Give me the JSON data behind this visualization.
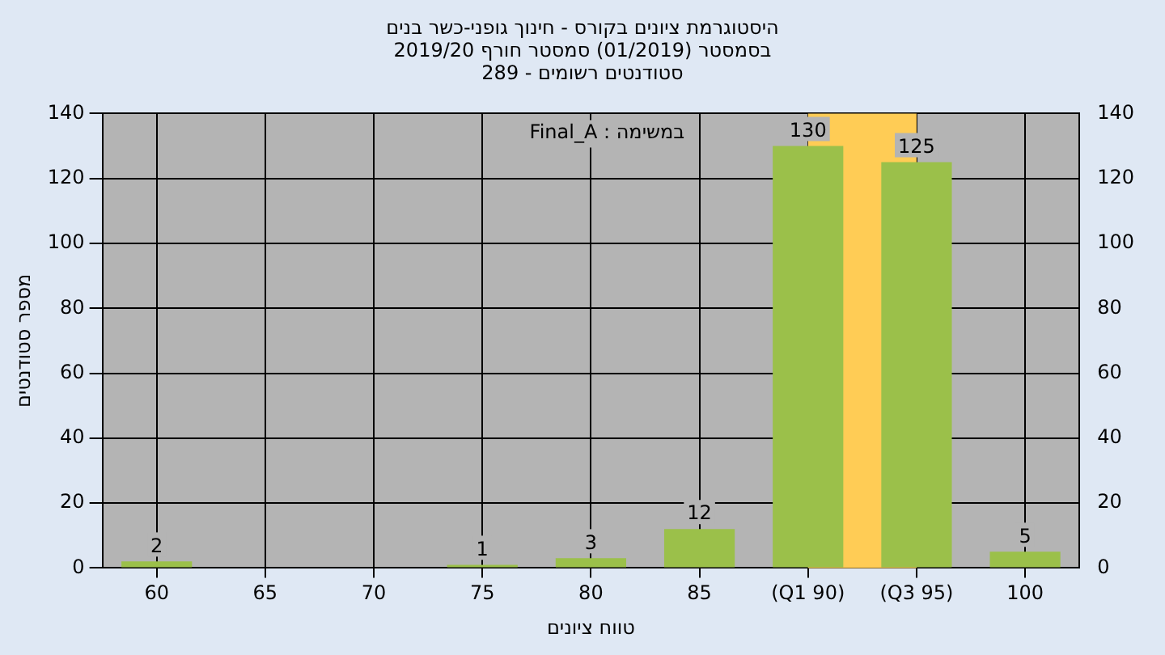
{
  "chart_data": {
    "type": "bar",
    "title": "היסטוגרמת ציונים בקורס - חינוך גופני-כשר בנים",
    "subtitle": "בסמסטר  (01/2019)  סמסטר חורף 2019/20\nסטודנטים רשומים - 289",
    "xlabel": "טווח ציונים",
    "ylabel": "מספר סטודנטים",
    "categories": [
      "60",
      "65",
      "70",
      "75",
      "80",
      "85",
      "(Q1 90)",
      "(Q3 95)",
      "100"
    ],
    "values": [
      2,
      0,
      0,
      1,
      3,
      12,
      130,
      125,
      5
    ],
    "value_labels": [
      "2",
      null,
      null,
      "1",
      "3",
      "12",
      "130",
      "125",
      "5"
    ],
    "color": "#9bc04a",
    "ylim": [
      0,
      140
    ],
    "yticks": [
      0,
      20,
      40,
      60,
      80,
      100,
      120,
      140
    ],
    "y2lim": [
      0,
      140
    ],
    "y2ticks": [
      0,
      20,
      40,
      60,
      80,
      100,
      120,
      140
    ],
    "bands": [
      {
        "axis": "x",
        "from": "(Q1 90)",
        "to": "(Q3 95)",
        "color": "#ffcc55"
      }
    ],
    "annotations": [
      "במשימה : Final_A"
    ],
    "grid": true,
    "legend": false
  }
}
